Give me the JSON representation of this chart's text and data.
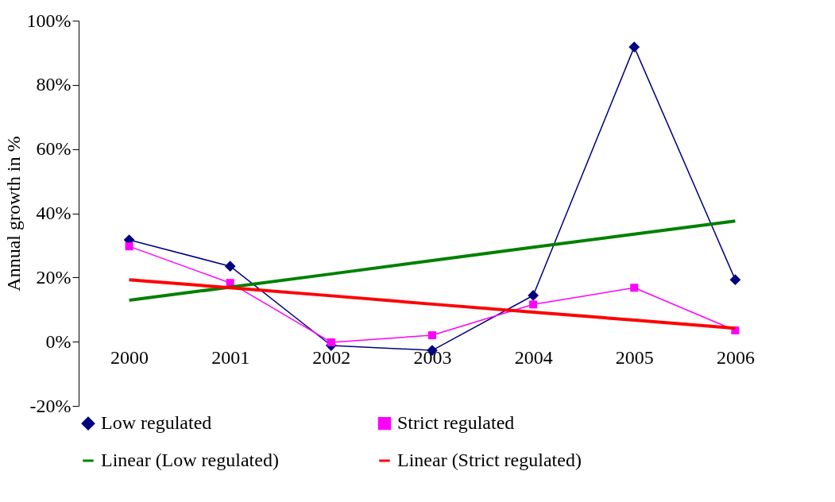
{
  "chart_data": {
    "type": "line",
    "ylabel": "Annual growth in %",
    "categories": [
      "2000",
      "2001",
      "2002",
      "2003",
      "2004",
      "2005",
      "2006"
    ],
    "ylim": [
      -20,
      100
    ],
    "yticks": [
      {
        "value": -20,
        "label": "-20%"
      },
      {
        "value": 0,
        "label": "0%"
      },
      {
        "value": 20,
        "label": "20%"
      },
      {
        "value": 40,
        "label": "40%"
      },
      {
        "value": 60,
        "label": "60%"
      },
      {
        "value": 80,
        "label": "80%"
      },
      {
        "value": 100,
        "label": "100%"
      }
    ],
    "grid": false,
    "legend": "bottom",
    "series": [
      {
        "name": "Low regulated",
        "color": "#000080",
        "marker": "diamond",
        "values": [
          31.7,
          23.5,
          -1.2,
          -2.7,
          14.4,
          91.8,
          19.3
        ]
      },
      {
        "name": "Strict regulated",
        "color": "#ff00ff",
        "marker": "square",
        "values": [
          29.7,
          18.3,
          -0.2,
          2.0,
          11.6,
          16.8,
          3.5
        ]
      },
      {
        "name": "Linear (Low regulated)",
        "color": "#008000",
        "marker": "none",
        "values": [
          12.9,
          17.0,
          21.1,
          25.3,
          29.4,
          33.5,
          37.6
        ]
      },
      {
        "name": "Linear (Strict regulated)",
        "color": "#ff0000",
        "marker": "none",
        "values": [
          19.3,
          16.8,
          14.3,
          11.7,
          9.2,
          6.7,
          4.2
        ]
      }
    ]
  }
}
